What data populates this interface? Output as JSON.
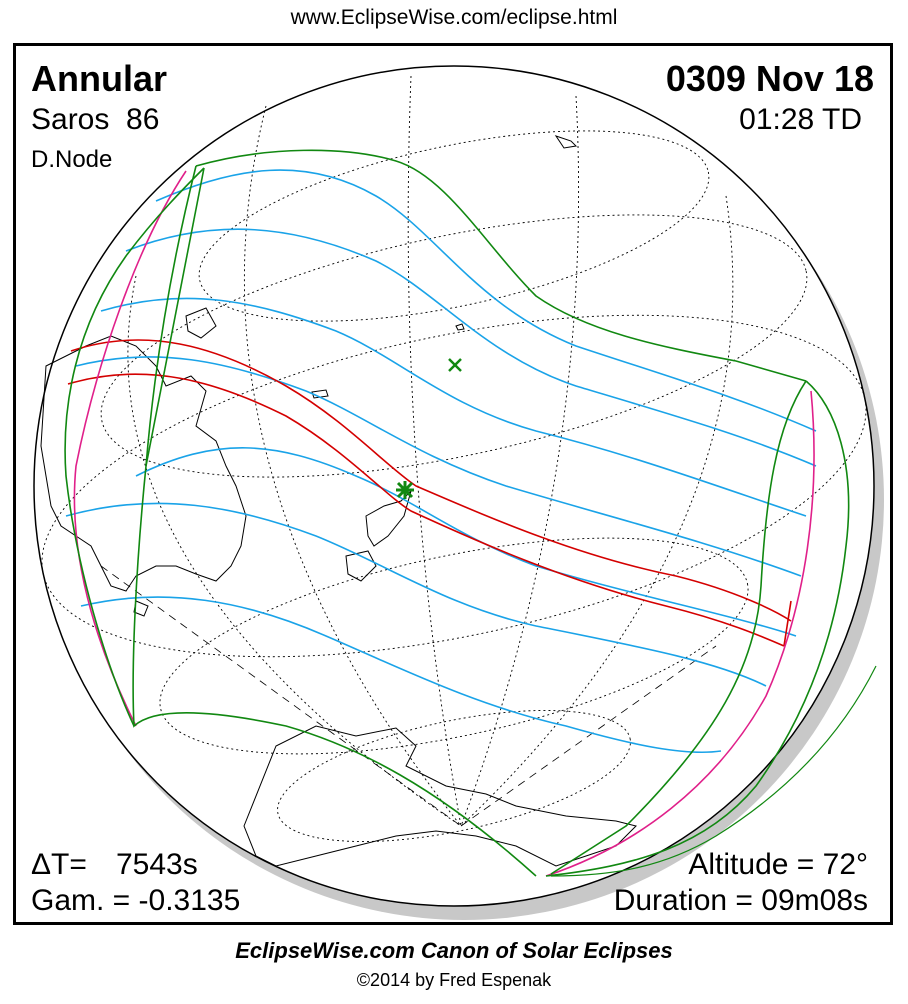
{
  "header": {
    "url": "www.EclipseWise.com/eclipse.html"
  },
  "eclipse": {
    "type": "Annular",
    "date": "0309 Nov 18",
    "saros": "Saros  86",
    "time": "01:28 TD",
    "node": "D.Node",
    "delta_t_label": "ΔT=",
    "delta_t_value": "7543s",
    "gamma": "Gam. = -0.3135",
    "altitude": "Altitude = 72°",
    "duration": "Duration = 09m08s"
  },
  "footer": {
    "title": "EclipseWise.com Canon of Solar Eclipses",
    "copyright": "©2014 by Fred Espenak"
  },
  "colors": {
    "central_path": "#d40000",
    "partial_lines": "#1aa3e8",
    "penumbra_limits": "#118811",
    "rise_set": "#e0208a",
    "greatest_eclipse_marker": "#118811",
    "globe_shadow": "#c0c0c0"
  }
}
